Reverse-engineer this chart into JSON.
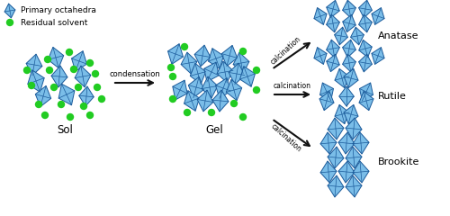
{
  "bg_color": "#ffffff",
  "octa_face_color": "#7abde8",
  "octa_edge_color": "#1a5a9a",
  "solvent_color": "#22cc22",
  "arrow_color": "#111111",
  "label_sol": "Sol",
  "label_gel": "Gel",
  "label_anatase": "Anatase",
  "label_rutile": "Rutile",
  "label_brookite": "Brookite",
  "label_condensation": "condensation",
  "label_calcination": "calcination",
  "legend_octahedra": "Primary octahedra",
  "legend_solvent": "Residual solvent",
  "figsize": [
    5.0,
    2.4
  ],
  "dpi": 100
}
